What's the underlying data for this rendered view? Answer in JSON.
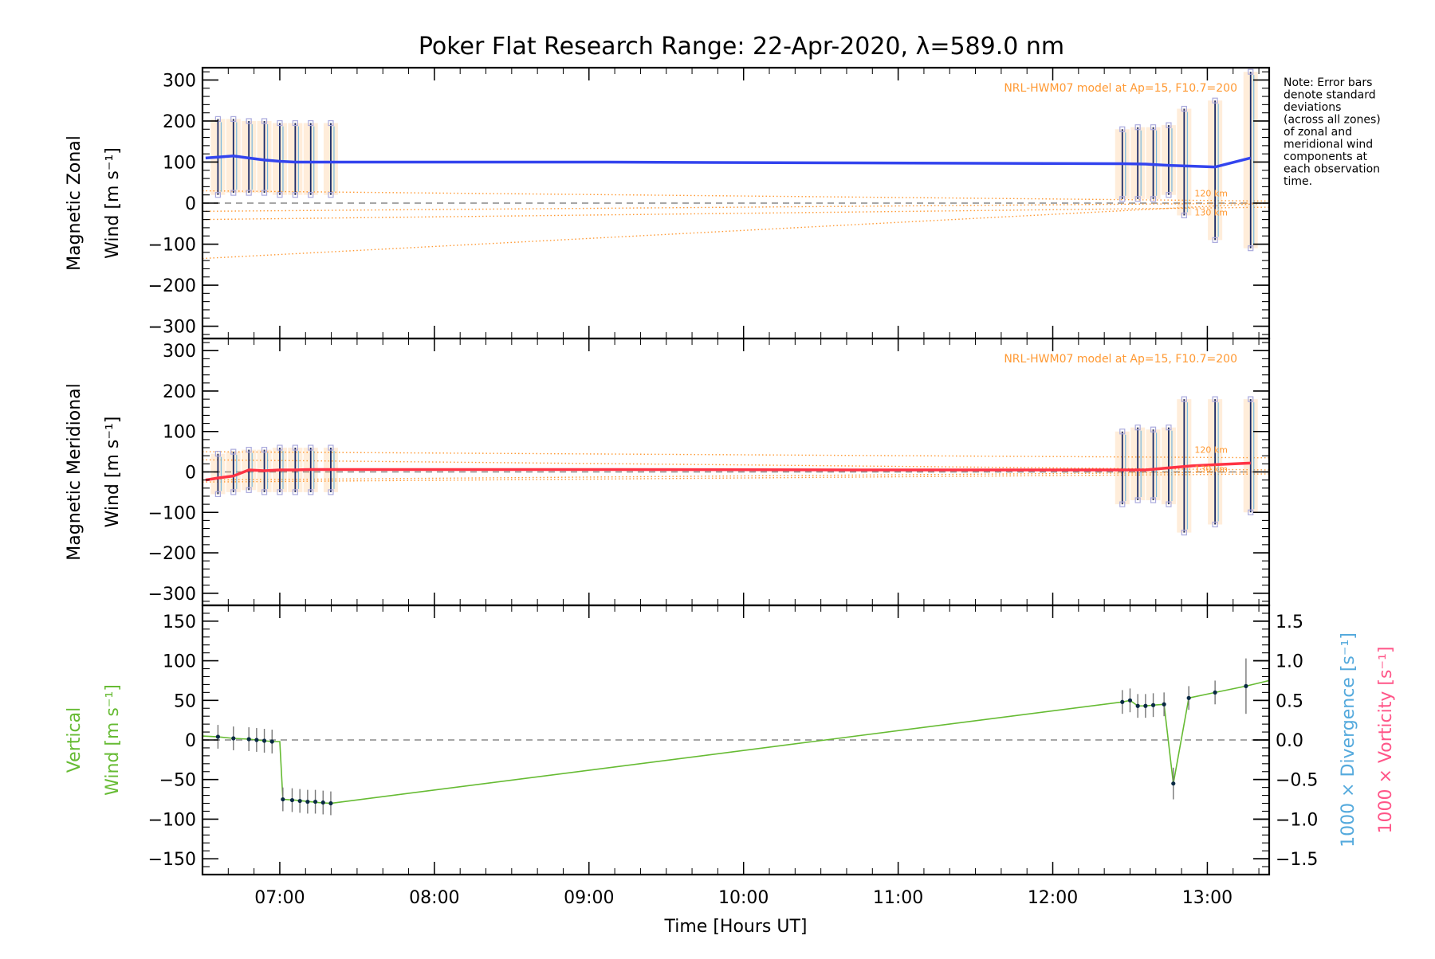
{
  "title": "Poker Flat Research Range: 22-Apr-2020, λ=589.0 nm",
  "note": [
    "Note: Error bars",
    "denote standard",
    "deviations",
    "(across all zones)",
    "of zonal and",
    "meridional wind",
    "components at",
    "each observation",
    "time."
  ],
  "colors": {
    "zonal": "#3344ee",
    "meridional": "#ff3344",
    "vertical": "#66bb33",
    "model": "#ff9933",
    "divergence": "#55aadd",
    "vorticity": "#ff5588",
    "zone_markers": "#aaaadd",
    "axis": "#000000"
  },
  "chart_data": [
    {
      "type": "line",
      "panel": "zonal",
      "ylabel_line1": "Magnetic Zonal",
      "ylabel_line2": "Wind [m s⁻¹]",
      "model_label": "NRL-HWM07 model at Ap=15, F10.7=200",
      "model_heights": [
        "120 km",
        "130 km"
      ],
      "xlim": [
        6.5,
        13.4
      ],
      "ylim": [
        -330,
        330
      ],
      "yticks": [
        300,
        200,
        100,
        0,
        -100,
        -200,
        -300
      ],
      "series": [
        {
          "role": "mean",
          "x": [
            6.52,
            6.6,
            6.7,
            6.8,
            6.9,
            7.0,
            7.1,
            7.2,
            7.33,
            9.0,
            10.7,
            12.45,
            12.6,
            12.75,
            12.9,
            13.05,
            13.28
          ],
          "y": [
            110,
            112,
            115,
            110,
            105,
            102,
            100,
            100,
            100,
            100,
            98,
            96,
            95,
            92,
            90,
            88,
            110
          ]
        }
      ],
      "error_bars": [
        {
          "x": 6.6,
          "lo": 20,
          "hi": 205
        },
        {
          "x": 6.7,
          "lo": 25,
          "hi": 205
        },
        {
          "x": 6.8,
          "lo": 25,
          "hi": 200
        },
        {
          "x": 6.9,
          "lo": 25,
          "hi": 200
        },
        {
          "x": 7.0,
          "lo": 20,
          "hi": 195
        },
        {
          "x": 7.1,
          "lo": 20,
          "hi": 195
        },
        {
          "x": 7.2,
          "lo": 20,
          "hi": 195
        },
        {
          "x": 7.33,
          "lo": 20,
          "hi": 195
        },
        {
          "x": 12.45,
          "lo": 10,
          "hi": 180
        },
        {
          "x": 12.55,
          "lo": 10,
          "hi": 185
        },
        {
          "x": 12.65,
          "lo": 10,
          "hi": 185
        },
        {
          "x": 12.75,
          "lo": 20,
          "hi": 190
        },
        {
          "x": 12.85,
          "lo": -30,
          "hi": 230
        },
        {
          "x": 13.05,
          "lo": -90,
          "hi": 250
        },
        {
          "x": 13.28,
          "lo": -110,
          "hi": 320
        }
      ],
      "model": [
        {
          "x": [
            6.5,
            13.4
          ],
          "y": [
            30,
            5
          ]
        },
        {
          "x": [
            6.5,
            13.4
          ],
          "y": [
            -40,
            -10
          ]
        },
        {
          "x": [
            6.5,
            13.4
          ],
          "y": [
            -135,
            0
          ]
        },
        {
          "x": [
            6.5,
            13.4
          ],
          "y": [
            -20,
            0
          ]
        }
      ]
    },
    {
      "type": "line",
      "panel": "meridional",
      "ylabel_line1": "Magnetic Meridional",
      "ylabel_line2": "Wind [m s⁻¹]",
      "model_label": "NRL-HWM07 model at Ap=15, F10.7=200",
      "model_heights": [
        "120 km",
        "130 km"
      ],
      "xlim": [
        6.5,
        13.4
      ],
      "ylim": [
        -330,
        330
      ],
      "yticks": [
        300,
        200,
        100,
        0,
        -100,
        -200,
        -300
      ],
      "series": [
        {
          "role": "mean",
          "x": [
            6.52,
            6.6,
            6.7,
            6.8,
            6.9,
            7.0,
            7.1,
            7.2,
            7.33,
            9.0,
            10.7,
            12.45,
            12.6,
            12.75,
            12.9,
            13.05,
            13.28
          ],
          "y": [
            -20,
            -15,
            -10,
            5,
            3,
            5,
            5,
            6,
            6,
            6,
            5,
            5,
            5,
            10,
            15,
            18,
            22
          ]
        }
      ],
      "error_bars": [
        {
          "x": 6.6,
          "lo": -55,
          "hi": 45
        },
        {
          "x": 6.7,
          "lo": -50,
          "hi": 50
        },
        {
          "x": 6.8,
          "lo": -45,
          "hi": 55
        },
        {
          "x": 6.9,
          "lo": -50,
          "hi": 55
        },
        {
          "x": 7.0,
          "lo": -50,
          "hi": 60
        },
        {
          "x": 7.1,
          "lo": -50,
          "hi": 60
        },
        {
          "x": 7.2,
          "lo": -50,
          "hi": 60
        },
        {
          "x": 7.33,
          "lo": -50,
          "hi": 60
        },
        {
          "x": 12.45,
          "lo": -80,
          "hi": 100
        },
        {
          "x": 12.55,
          "lo": -70,
          "hi": 110
        },
        {
          "x": 12.65,
          "lo": -70,
          "hi": 105
        },
        {
          "x": 12.75,
          "lo": -80,
          "hi": 110
        },
        {
          "x": 12.85,
          "lo": -150,
          "hi": 180
        },
        {
          "x": 13.05,
          "lo": -130,
          "hi": 180
        },
        {
          "x": 13.28,
          "lo": -100,
          "hi": 180
        }
      ],
      "model": [
        {
          "x": [
            6.5,
            13.4
          ],
          "y": [
            50,
            35
          ]
        },
        {
          "x": [
            6.5,
            13.4
          ],
          "y": [
            30,
            5
          ]
        },
        {
          "x": [
            6.5,
            13.4
          ],
          "y": [
            -20,
            0
          ]
        },
        {
          "x": [
            6.5,
            13.4
          ],
          "y": [
            -25,
            -5
          ]
        }
      ]
    },
    {
      "type": "line",
      "panel": "vertical",
      "ylabel_line1": "Vertical",
      "ylabel_line2": "Wind [m s⁻¹]",
      "xlabel": "Time [Hours UT]",
      "xlim": [
        6.5,
        13.4
      ],
      "ylim": [
        -170,
        170
      ],
      "yticks": [
        150,
        100,
        50,
        0,
        -50,
        -100,
        -150
      ],
      "xticks": [
        {
          "v": 7,
          "label": "07:00"
        },
        {
          "v": 8,
          "label": "08:00"
        },
        {
          "v": 9,
          "label": "09:00"
        },
        {
          "v": 10,
          "label": "10:00"
        },
        {
          "v": 11,
          "label": "11:00"
        },
        {
          "v": 12,
          "label": "12:00"
        },
        {
          "v": 13,
          "label": "13:00"
        }
      ],
      "right_axis": {
        "label_divergence": "1000 × Divergence [s⁻¹]",
        "label_vorticity": "1000 × Vorticity [s⁻¹]",
        "ylim": [
          -1.7,
          1.7
        ],
        "ticks": [
          1.5,
          1.0,
          0.5,
          0.0,
          -0.5,
          -1.0,
          -1.5
        ],
        "tick_labels": [
          "1.5",
          "1.0",
          "0.5",
          "0.0",
          "−0.5",
          "−1.0",
          "−1.5"
        ]
      },
      "series": [
        {
          "role": "mean",
          "x": [
            6.5,
            6.6,
            6.7,
            6.8,
            6.85,
            6.9,
            6.95,
            7.0,
            7.02,
            7.1,
            7.15,
            7.2,
            7.25,
            7.33,
            12.45,
            12.5,
            12.55,
            12.6,
            12.65,
            12.72,
            12.78,
            12.88,
            13.05,
            13.25,
            13.4
          ],
          "y": [
            5,
            4,
            2,
            1,
            0,
            -1,
            -2,
            -2,
            -75,
            -76,
            -77,
            -78,
            -79,
            -80,
            48,
            50,
            43,
            43,
            44,
            45,
            -55,
            53,
            60,
            68,
            75
          ]
        }
      ],
      "points": [
        {
          "x": 6.6,
          "y": 4,
          "err": 15
        },
        {
          "x": 6.7,
          "y": 2,
          "err": 15
        },
        {
          "x": 6.8,
          "y": 1,
          "err": 15
        },
        {
          "x": 6.85,
          "y": 0,
          "err": 15
        },
        {
          "x": 6.9,
          "y": -1,
          "err": 15
        },
        {
          "x": 6.95,
          "y": -2,
          "err": 15
        },
        {
          "x": 7.02,
          "y": -75,
          "err": 15
        },
        {
          "x": 7.08,
          "y": -76,
          "err": 15
        },
        {
          "x": 7.13,
          "y": -77,
          "err": 15
        },
        {
          "x": 7.18,
          "y": -78,
          "err": 15
        },
        {
          "x": 7.23,
          "y": -78,
          "err": 15
        },
        {
          "x": 7.28,
          "y": -79,
          "err": 15
        },
        {
          "x": 7.33,
          "y": -80,
          "err": 15
        },
        {
          "x": 12.45,
          "y": 48,
          "err": 15
        },
        {
          "x": 12.5,
          "y": 50,
          "err": 15
        },
        {
          "x": 12.55,
          "y": 43,
          "err": 15
        },
        {
          "x": 12.6,
          "y": 43,
          "err": 15
        },
        {
          "x": 12.65,
          "y": 44,
          "err": 15
        },
        {
          "x": 12.72,
          "y": 45,
          "err": 15
        },
        {
          "x": 12.78,
          "y": -55,
          "err": 20
        },
        {
          "x": 12.88,
          "y": 53,
          "err": 15
        },
        {
          "x": 13.05,
          "y": 60,
          "err": 15
        },
        {
          "x": 13.25,
          "y": 68,
          "err": 35
        }
      ]
    }
  ]
}
